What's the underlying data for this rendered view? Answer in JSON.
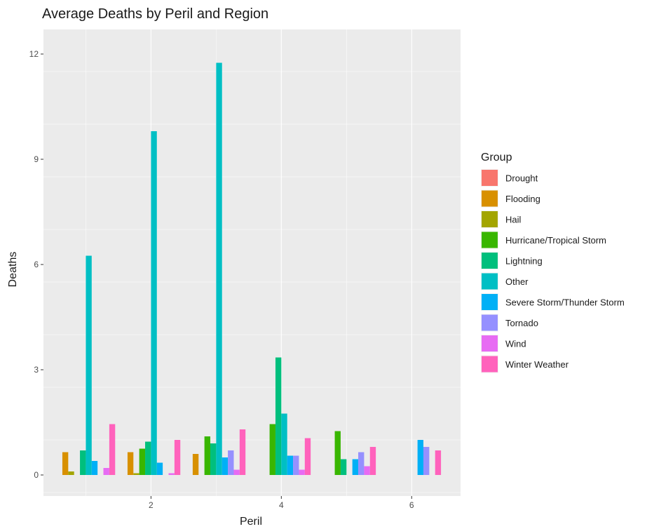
{
  "chart_data": {
    "type": "bar",
    "title": "Average Deaths by Peril and Region",
    "xlabel": "Peril",
    "ylabel": "Deaths",
    "xlim": [
      0.35,
      6.75
    ],
    "ylim": [
      -0.6,
      12.7
    ],
    "xticks": [
      2,
      4,
      6
    ],
    "xtick_labels": [
      "2",
      "4",
      "6"
    ],
    "yticks": [
      0,
      3,
      6,
      9,
      12
    ],
    "ytick_labels": [
      "0",
      "3",
      "6",
      "9",
      "12"
    ],
    "grid": true,
    "legend": {
      "title": "Group",
      "placement": "right"
    },
    "series": [
      {
        "name": "Drought",
        "color": "#F8766D",
        "values": [
          0,
          0,
          0,
          0,
          0,
          0
        ]
      },
      {
        "name": "Flooding",
        "color": "#D89000",
        "values": [
          0.65,
          0.65,
          0.6,
          0,
          0,
          0
        ]
      },
      {
        "name": "Hail",
        "color": "#A3A500",
        "values": [
          0.1,
          0.05,
          0,
          0,
          0,
          0
        ]
      },
      {
        "name": "Hurricane/Tropical Storm",
        "color": "#39B600",
        "values": [
          0,
          0.75,
          1.1,
          1.45,
          1.25,
          0
        ]
      },
      {
        "name": "Lightning",
        "color": "#00BF7D",
        "values": [
          0.7,
          0.95,
          0.9,
          3.35,
          0.45,
          0
        ]
      },
      {
        "name": "Other",
        "color": "#00BFC4",
        "values": [
          6.25,
          9.8,
          11.75,
          1.75,
          0,
          0
        ]
      },
      {
        "name": "Severe Storm/Thunder Storm",
        "color": "#00B0F6",
        "values": [
          0.4,
          0.35,
          0.5,
          0.55,
          0.45,
          1.0
        ]
      },
      {
        "name": "Tornado",
        "color": "#9590FF",
        "values": [
          0,
          0,
          0.7,
          0.55,
          0.65,
          0.8
        ]
      },
      {
        "name": "Wind",
        "color": "#E76BF3",
        "values": [
          0.2,
          0.05,
          0.15,
          0.15,
          0.25,
          0
        ]
      },
      {
        "name": "Winter Weather",
        "color": "#FF62BC",
        "values": [
          1.45,
          1.0,
          1.3,
          1.05,
          0.8,
          0.7
        ]
      }
    ],
    "x": [
      1,
      2,
      3,
      4,
      5,
      6
    ]
  }
}
